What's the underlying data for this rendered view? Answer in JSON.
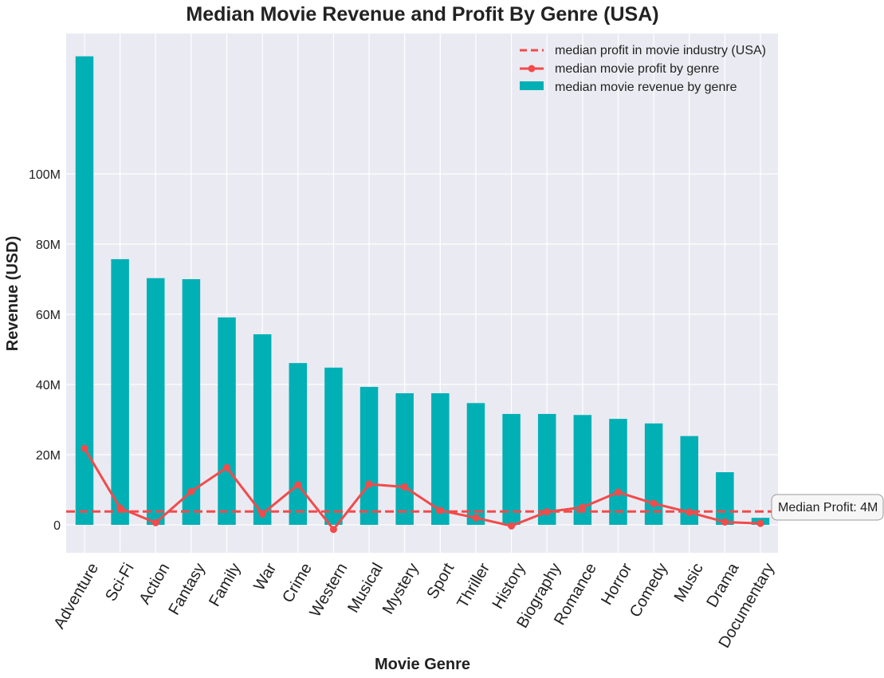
{
  "chart_data": {
    "type": "bar",
    "title": "Median Movie Revenue and Profit By Genre (USA)",
    "xlabel": "Movie Genre",
    "ylabel": "Revenue (USD)",
    "ylim": [
      -8,
      140
    ],
    "yticks": [
      {
        "value": 0,
        "label": "0"
      },
      {
        "value": 20,
        "label": "20M"
      },
      {
        "value": 40,
        "label": "40M"
      },
      {
        "value": 60,
        "label": "60M"
      },
      {
        "value": 80,
        "label": "80M"
      },
      {
        "value": 100,
        "label": "100M"
      }
    ],
    "grid": true,
    "legend_position": "top-right",
    "categories": [
      "Adventure",
      "Sci-Fi",
      "Action",
      "Fantasy",
      "Family",
      "War",
      "Crime",
      "Western",
      "Musical",
      "Mystery",
      "Sport",
      "Thriller",
      "History",
      "Biography",
      "Romance",
      "Horror",
      "Comedy",
      "Music",
      "Drama",
      "Documentary"
    ],
    "series": [
      {
        "name": "median movie revenue by genre",
        "type": "bar",
        "color": "#00b0b5",
        "values": [
          133.5,
          75.7,
          70.3,
          70.0,
          59.1,
          54.3,
          46.1,
          44.8,
          39.3,
          37.5,
          37.5,
          34.7,
          31.6,
          31.6,
          31.3,
          30.2,
          28.9,
          25.3,
          15.0,
          2.0
        ]
      },
      {
        "name": "median movie profit by genre",
        "type": "line",
        "color": "#f24b4b",
        "values": [
          21.8,
          4.8,
          0.6,
          9.5,
          16.3,
          3.1,
          11.4,
          -1.3,
          11.6,
          10.8,
          4.1,
          2.0,
          -0.3,
          3.7,
          5.0,
          9.3,
          6.1,
          3.6,
          0.8,
          0.4
        ]
      },
      {
        "name": "median profit in movie industry (USA)",
        "type": "hline",
        "color": "#f24b4b",
        "value": 3.8
      }
    ],
    "annotation": {
      "text": "Median Profit: 4M",
      "value": 3.8
    }
  }
}
